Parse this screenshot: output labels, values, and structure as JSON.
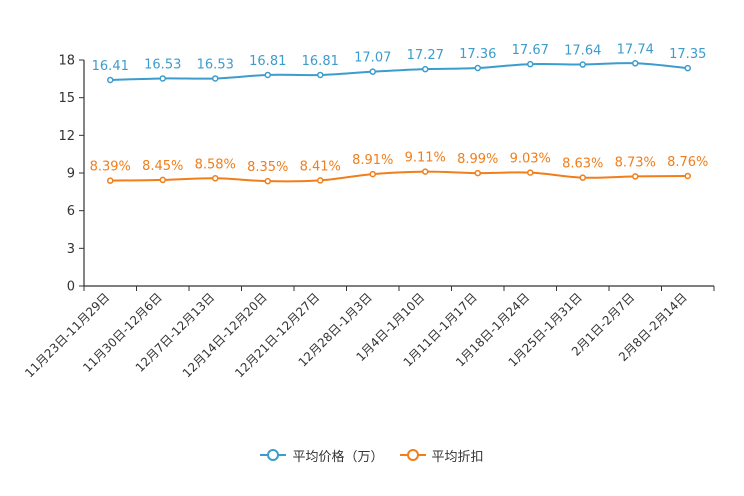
{
  "chart_data": {
    "type": "line",
    "title": "",
    "xlabel": "",
    "ylabel": "",
    "ylim": [
      0,
      18
    ],
    "yticks": [
      0,
      3,
      6,
      9,
      12,
      15,
      18
    ],
    "categories": [
      "11月23日-11月29日",
      "11月30日-12月6日",
      "12月7日-12月13日",
      "12月14日-12月20日",
      "12月21日-12月27日",
      "12月28日-1月3日",
      "1月4日-1月10日",
      "1月11日-1月17日",
      "1月18日-1月24日",
      "1月25日-1月31日",
      "2月1日-2月7日",
      "2月8日-2月14日"
    ],
    "series": [
      {
        "name": "平均价格（万）",
        "color": "#3c9ccc",
        "values": [
          16.41,
          16.53,
          16.53,
          16.81,
          16.81,
          17.07,
          17.27,
          17.36,
          17.67,
          17.64,
          17.74,
          17.35
        ],
        "labels": [
          "16.41",
          "16.53",
          "16.53",
          "16.81",
          "16.81",
          "17.07",
          "17.27",
          "17.36",
          "17.67",
          "17.64",
          "17.74",
          "17.35"
        ]
      },
      {
        "name": "平均折扣",
        "color": "#f07e1b",
        "values": [
          8.39,
          8.45,
          8.58,
          8.35,
          8.41,
          8.91,
          9.11,
          8.99,
          9.03,
          8.63,
          8.73,
          8.76
        ],
        "labels": [
          "8.39%",
          "8.45%",
          "8.58%",
          "8.35%",
          "8.41%",
          "8.91%",
          "9.11%",
          "8.99%",
          "9.03%",
          "8.63%",
          "8.73%",
          "8.76%"
        ]
      }
    ],
    "legend_position": "bottom-center",
    "grid": false
  }
}
